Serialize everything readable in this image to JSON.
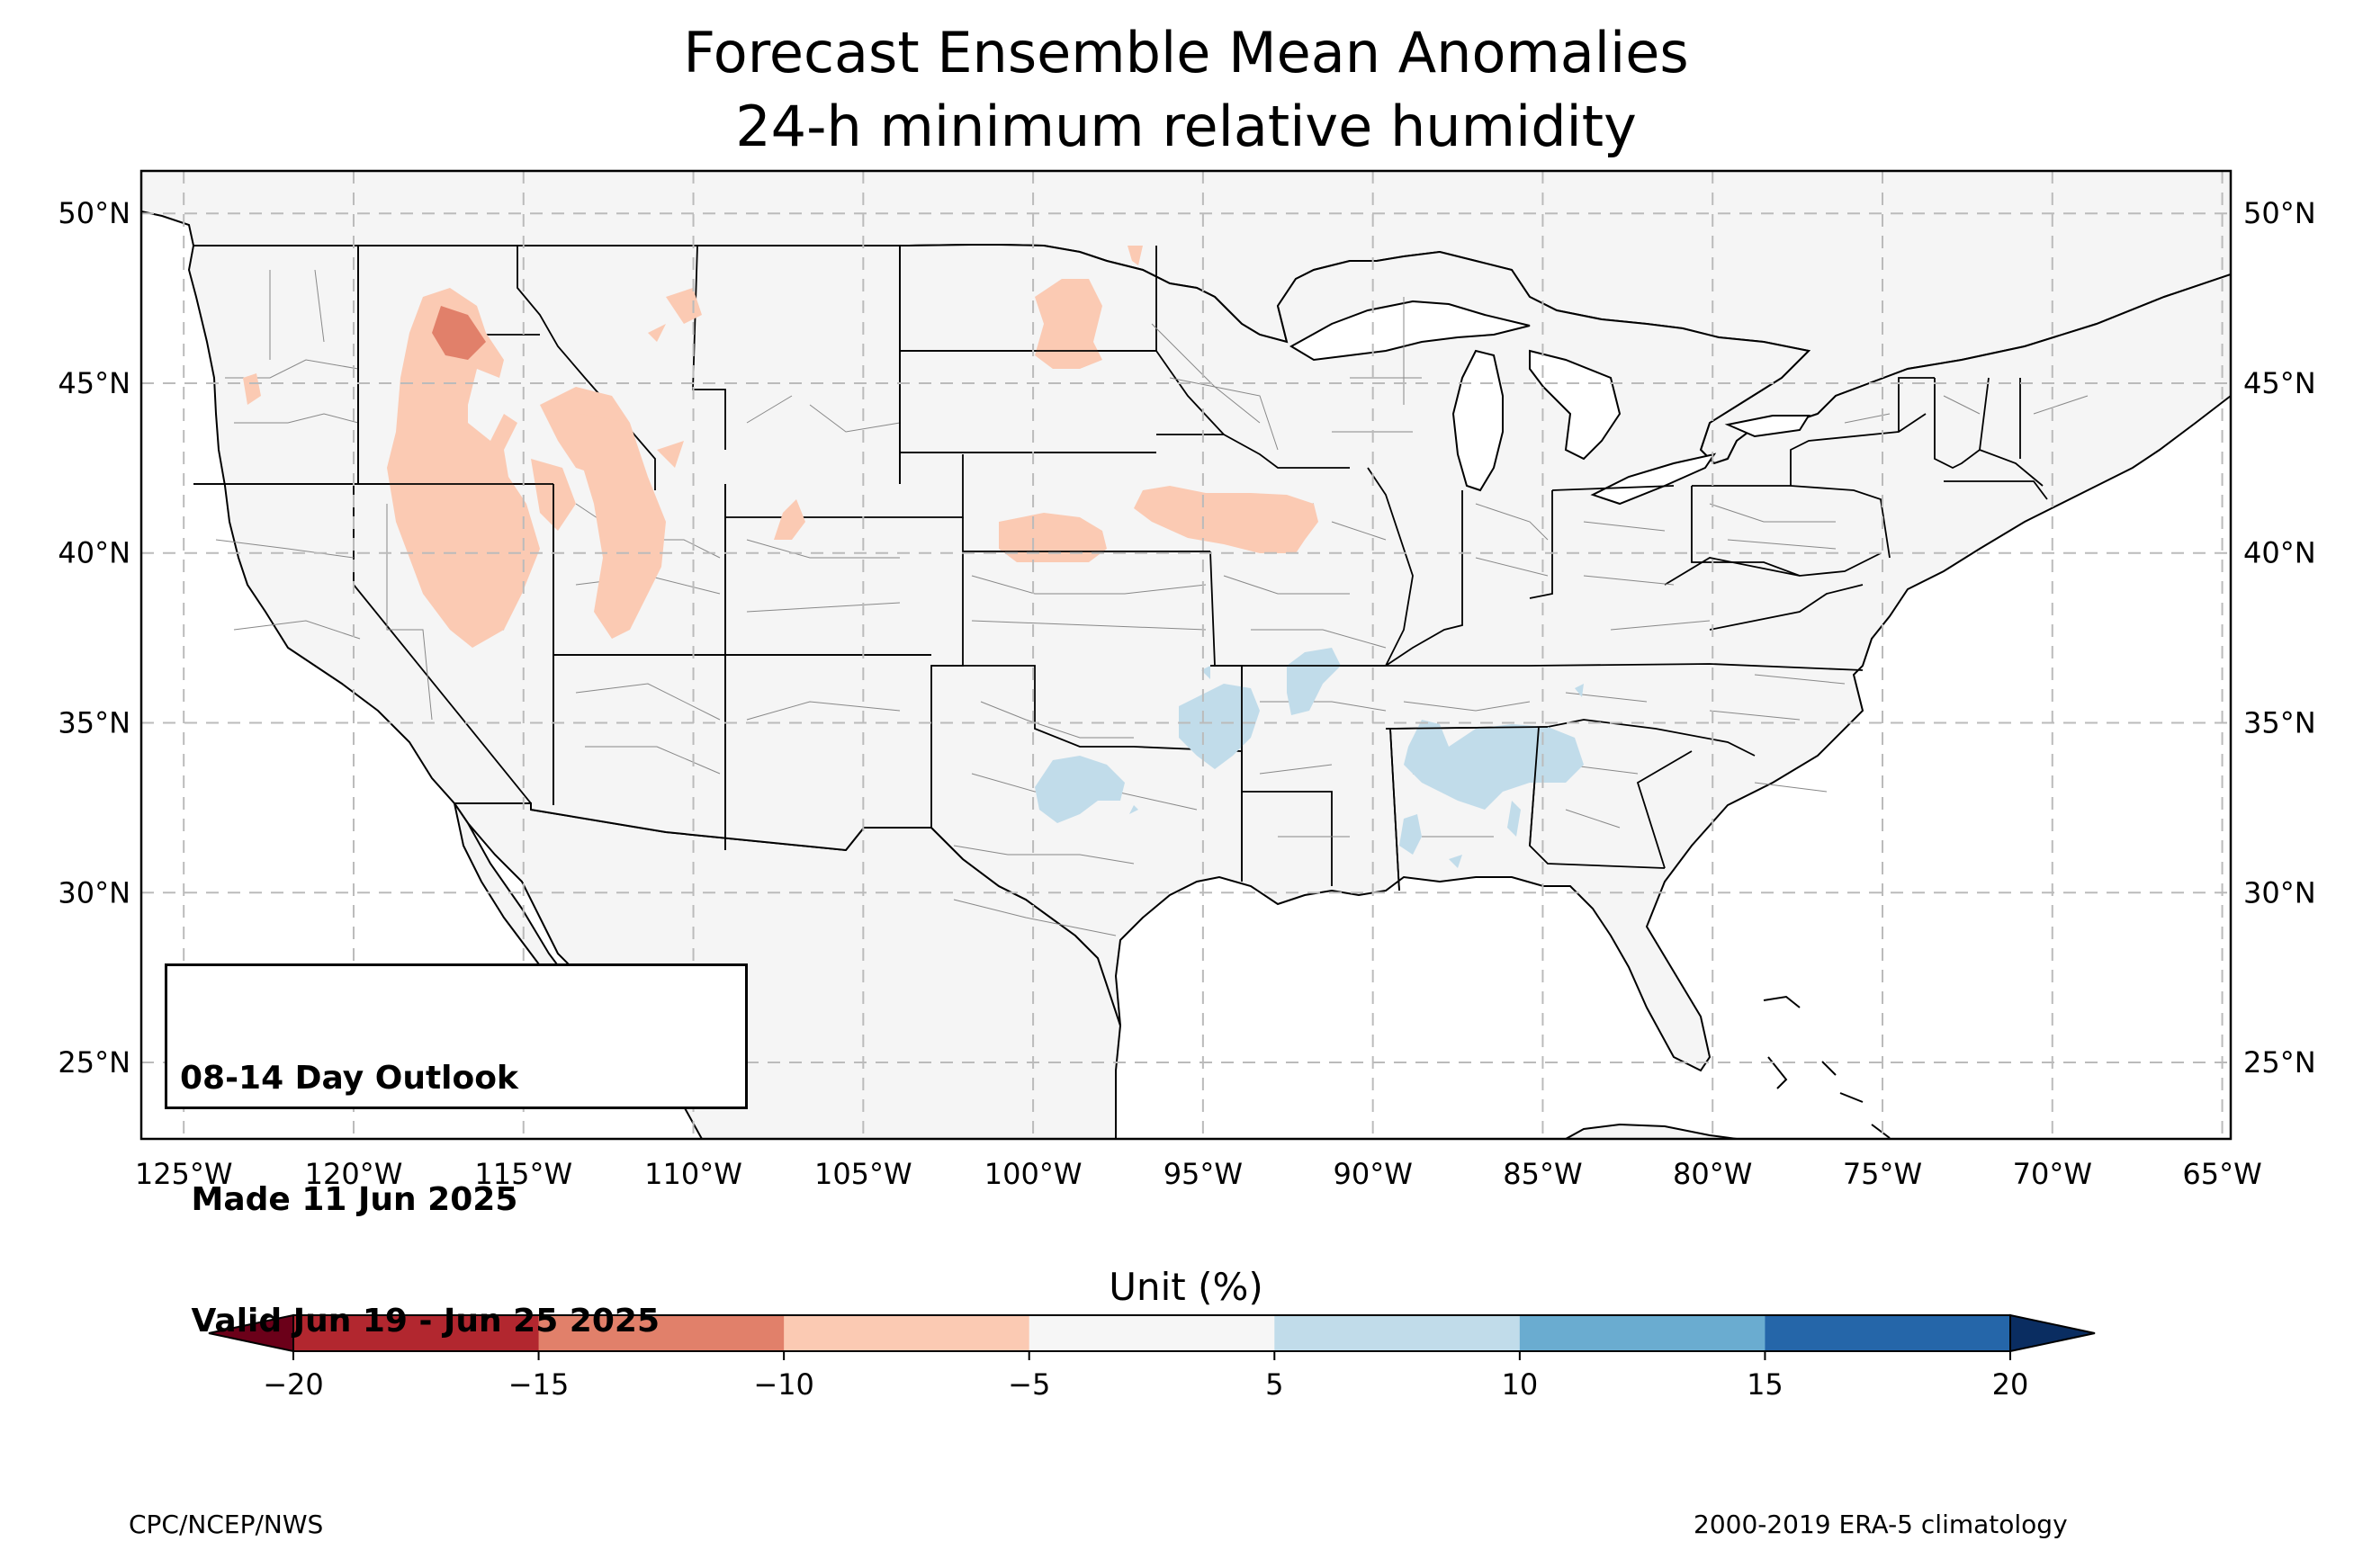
{
  "title": {
    "line1": "Forecast Ensemble Mean Anomalies",
    "line2": "24-h minimum relative humidity"
  },
  "map": {
    "lon_range": [
      -126.25,
      -64.75
    ],
    "lat_range": [
      22.75,
      51.25
    ],
    "lon_ticks": [
      "125°W",
      "120°W",
      "115°W",
      "110°W",
      "105°W",
      "100°W",
      "95°W",
      "90°W",
      "85°W",
      "80°W",
      "75°W",
      "70°W",
      "65°W"
    ],
    "lat_ticks": [
      "25°N",
      "30°N",
      "35°N",
      "40°N",
      "45°N",
      "50°N"
    ],
    "gridlines": true,
    "land_color": "#f5f5f5",
    "negative_anomaly_areas": [
      "Idaho/Washington border",
      "Idaho/Montana",
      "Wyoming/Idaho",
      "North Dakota",
      "Nebraska",
      "Iowa",
      "Colorado"
    ],
    "positive_anomaly_areas": [
      "Oklahoma",
      "Arkansas",
      "Mississippi/Alabama",
      "Texas"
    ]
  },
  "info_box": {
    "line1": "08-14 Day Outlook",
    "line2": " Made 11 Jun 2025",
    "line3": " Valid Jun 19 - Jun 25 2025"
  },
  "colorbar": {
    "title": "Unit (%)",
    "ticks": [
      "−20",
      "−15",
      "−10",
      "−5",
      "5",
      "10",
      "15",
      "20"
    ],
    "colors": [
      "#b2272f",
      "#e1806a",
      "#fbcab3",
      "#f6f6f6",
      "#c1dcea",
      "#6aacd0",
      "#2566a9"
    ],
    "under_color": "#6b0019",
    "over_color": "#0a2d61"
  },
  "footer": {
    "left": "CPC/NCEP/NWS",
    "right": "2000-2019 ERA-5 climatology"
  }
}
